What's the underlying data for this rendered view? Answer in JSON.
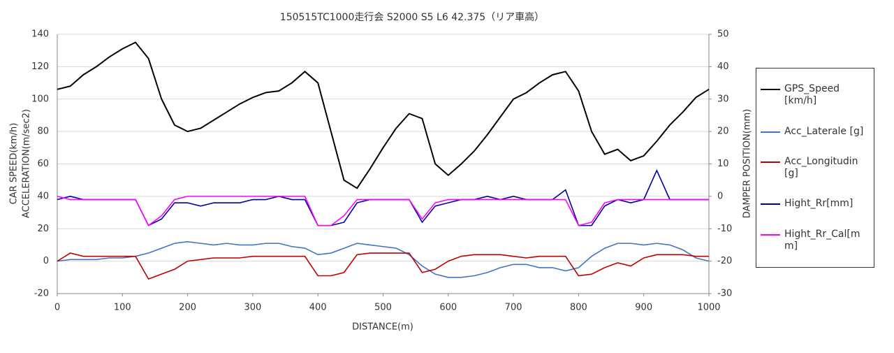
{
  "chart_data": {
    "type": "line",
    "title": "150515TC1000走行会 S2000 S5 L6 42.375（リア車高）",
    "xlabel": "DISTANCE(m)",
    "ylabel": [
      "CAR SPEED(km/h)",
      "ACCELERATION(m/sec2)"
    ],
    "y2label": "DAMPER POSITION(mm)",
    "x": [
      0,
      20,
      40,
      60,
      80,
      100,
      120,
      140,
      160,
      180,
      200,
      220,
      240,
      260,
      280,
      300,
      320,
      340,
      360,
      380,
      400,
      420,
      440,
      460,
      480,
      500,
      520,
      540,
      560,
      580,
      600,
      620,
      640,
      660,
      680,
      700,
      720,
      740,
      760,
      780,
      800,
      820,
      840,
      860,
      880,
      900,
      920,
      940,
      960,
      980,
      1000
    ],
    "xlim": [
      0,
      1000
    ],
    "xticks": [
      0,
      100,
      200,
      300,
      400,
      500,
      600,
      700,
      800,
      900,
      1000
    ],
    "ylim": [
      -20,
      140
    ],
    "yticks": [
      -20,
      0,
      20,
      40,
      60,
      80,
      100,
      120,
      140
    ],
    "y2lim": [
      -30,
      50
    ],
    "y2ticks": [
      -30,
      -20,
      -10,
      0,
      10,
      20,
      30,
      40,
      50
    ],
    "grid": true,
    "legend": "right",
    "series": [
      {
        "name": "GPS_Speed [km/h]",
        "color": "#000000",
        "values": [
          106,
          108,
          115,
          120,
          126,
          131,
          135,
          125,
          100,
          84,
          80,
          82,
          87,
          92,
          97,
          101,
          104,
          105,
          110,
          117,
          110,
          80,
          50,
          45,
          57,
          70,
          82,
          91,
          88,
          60,
          53,
          60,
          68,
          78,
          89,
          100,
          104,
          110,
          115,
          117,
          105,
          80,
          66,
          69,
          62,
          65,
          74,
          84,
          92,
          101,
          106
        ]
      },
      {
        "name": "Acc_Laterale [g]",
        "color": "#4472c4",
        "values": [
          0,
          1,
          1,
          1,
          2,
          2,
          3,
          5,
          8,
          11,
          12,
          11,
          10,
          11,
          10,
          10,
          11,
          11,
          9,
          8,
          4,
          5,
          8,
          11,
          10,
          9,
          8,
          4,
          -3,
          -8,
          -10,
          -10,
          -9,
          -7,
          -4,
          -2,
          -2,
          -4,
          -4,
          -6,
          -4,
          3,
          8,
          11,
          11,
          10,
          11,
          10,
          7,
          2,
          0
        ]
      },
      {
        "name": "Acc_Longitudin [g]",
        "color": "#c00000",
        "values": [
          0,
          5,
          3,
          3,
          3,
          3,
          3,
          -11,
          -8,
          -5,
          0,
          1,
          2,
          2,
          2,
          3,
          3,
          3,
          3,
          3,
          -9,
          -9,
          -7,
          4,
          5,
          5,
          5,
          5,
          -7,
          -5,
          0,
          3,
          4,
          4,
          4,
          3,
          2,
          3,
          3,
          3,
          -9,
          -8,
          -4,
          -1,
          -3,
          2,
          4,
          4,
          4,
          3,
          3
        ]
      },
      {
        "name": "Hight_Rr[mm]",
        "color": "#0000a0",
        "axis": "y2",
        "values": [
          -1,
          0,
          -1,
          -1,
          -1,
          -1,
          -1,
          -9,
          -7,
          -2,
          -2,
          -3,
          -2,
          -2,
          -2,
          -1,
          -1,
          0,
          -1,
          -1,
          -9,
          -9,
          -8,
          -2,
          -1,
          -1,
          -1,
          -1,
          -8,
          -3,
          -2,
          -1,
          -1,
          0,
          -1,
          0,
          -1,
          -1,
          -1,
          2,
          -9,
          -9,
          -3,
          -1,
          -2,
          -1,
          8,
          -1,
          -1,
          -1,
          -1
        ]
      },
      {
        "name": "Hight_Rr_Cal[mm]",
        "color": "#ff00ff",
        "axis": "y2",
        "values": [
          0,
          -1,
          -1,
          -1,
          -1,
          -1,
          -1,
          -9,
          -6,
          -1,
          0,
          0,
          0,
          0,
          0,
          0,
          0,
          0,
          0,
          0,
          -9,
          -9,
          -6,
          -1,
          -1,
          -1,
          -1,
          -1,
          -7,
          -2,
          -1,
          -1,
          -1,
          -1,
          -1,
          -1,
          -1,
          -1,
          -1,
          -1,
          -9,
          -8,
          -2,
          -1,
          -1,
          -1,
          -1,
          -1,
          -1,
          -1,
          -1
        ]
      }
    ]
  }
}
